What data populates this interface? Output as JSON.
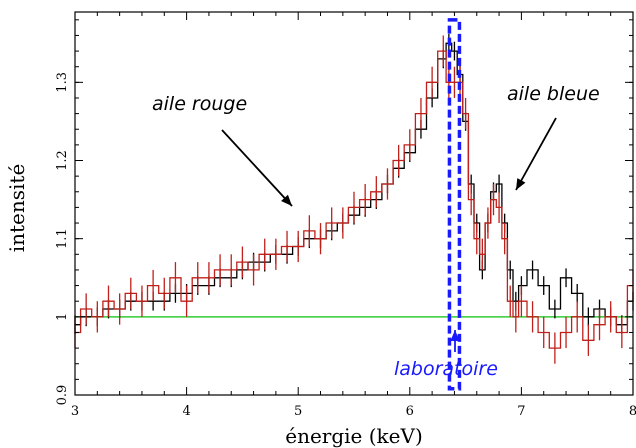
{
  "chart_data": {
    "type": "line",
    "title": "",
    "xlabel": "énergie (keV)",
    "ylabel": "intensité",
    "xlim": [
      3,
      8
    ],
    "ylim": [
      0.9,
      1.39
    ],
    "x_ticks": [
      3,
      4,
      5,
      6,
      7,
      8
    ],
    "y_ticks": [
      0.9,
      1,
      1.1,
      1.2,
      1.3
    ],
    "x_tick_labels": [
      "3",
      "4",
      "5",
      "6",
      "7",
      "8"
    ],
    "y_tick_labels": [
      "0.9",
      "1",
      "1.1",
      "1.2",
      "1.3"
    ],
    "grid": false,
    "legend": "none",
    "series": [
      {
        "color": "#000000",
        "style": "step with error bars",
        "x": [
          3.0,
          3.1,
          3.2,
          3.3,
          3.4,
          3.5,
          3.6,
          3.7,
          3.8,
          3.9,
          4.0,
          4.1,
          4.2,
          4.3,
          4.4,
          4.5,
          4.6,
          4.7,
          4.8,
          4.9,
          5.0,
          5.1,
          5.2,
          5.3,
          5.4,
          5.5,
          5.6,
          5.7,
          5.8,
          5.9,
          6.0,
          6.1,
          6.2,
          6.3,
          6.35,
          6.4,
          6.45,
          6.5,
          6.55,
          6.6,
          6.65,
          6.7,
          6.75,
          6.8,
          6.85,
          6.9,
          6.95,
          7.0,
          7.1,
          7.2,
          7.3,
          7.4,
          7.5,
          7.6,
          7.7,
          7.8,
          7.9,
          8.0
        ],
        "y": [
          0.99,
          1.0,
          1.0,
          1.01,
          1.01,
          1.02,
          1.02,
          1.02,
          1.02,
          1.03,
          1.03,
          1.04,
          1.04,
          1.05,
          1.05,
          1.06,
          1.07,
          1.07,
          1.08,
          1.08,
          1.09,
          1.1,
          1.1,
          1.11,
          1.12,
          1.13,
          1.14,
          1.15,
          1.17,
          1.19,
          1.21,
          1.24,
          1.28,
          1.33,
          1.35,
          1.34,
          1.31,
          1.25,
          1.17,
          1.12,
          1.06,
          1.12,
          1.16,
          1.17,
          1.12,
          1.06,
          1.02,
          1.04,
          1.06,
          1.04,
          1.01,
          1.05,
          1.03,
          1.0,
          1.01,
          1.0,
          0.99,
          1.02
        ]
      },
      {
        "color": "#c0201a",
        "style": "step with error bars",
        "x": [
          3.0,
          3.1,
          3.2,
          3.3,
          3.4,
          3.5,
          3.6,
          3.7,
          3.8,
          3.9,
          4.0,
          4.1,
          4.2,
          4.3,
          4.4,
          4.5,
          4.6,
          4.7,
          4.8,
          4.9,
          5.0,
          5.1,
          5.2,
          5.3,
          5.4,
          5.5,
          5.6,
          5.7,
          5.8,
          5.9,
          6.0,
          6.1,
          6.2,
          6.3,
          6.35,
          6.4,
          6.45,
          6.5,
          6.55,
          6.6,
          6.65,
          6.7,
          6.75,
          6.8,
          6.85,
          6.9,
          6.95,
          7.0,
          7.1,
          7.2,
          7.3,
          7.4,
          7.5,
          7.6,
          7.7,
          7.8,
          7.9,
          8.0
        ],
        "y": [
          0.98,
          1.01,
          1.0,
          1.02,
          1.01,
          1.03,
          1.02,
          1.04,
          1.03,
          1.05,
          1.02,
          1.05,
          1.05,
          1.06,
          1.06,
          1.07,
          1.06,
          1.08,
          1.08,
          1.09,
          1.09,
          1.11,
          1.1,
          1.12,
          1.12,
          1.14,
          1.15,
          1.16,
          1.17,
          1.2,
          1.22,
          1.26,
          1.3,
          1.34,
          1.3,
          1.3,
          1.3,
          1.26,
          1.15,
          1.1,
          1.08,
          1.12,
          1.15,
          1.14,
          1.1,
          1.02,
          1.0,
          1.02,
          1.0,
          0.98,
          0.96,
          0.98,
          1.0,
          0.97,
          0.99,
          1.0,
          0.98,
          1.04
        ]
      }
    ],
    "reference_line": {
      "y": 1.0,
      "color": "#33cc33"
    },
    "marker": {
      "x": 6.4,
      "color": "#1a1aff",
      "style": "dashed"
    },
    "annotations": [
      {
        "text": "aile rouge"
      },
      {
        "text": "aile bleue"
      },
      {
        "text": "laboratoire"
      }
    ]
  }
}
